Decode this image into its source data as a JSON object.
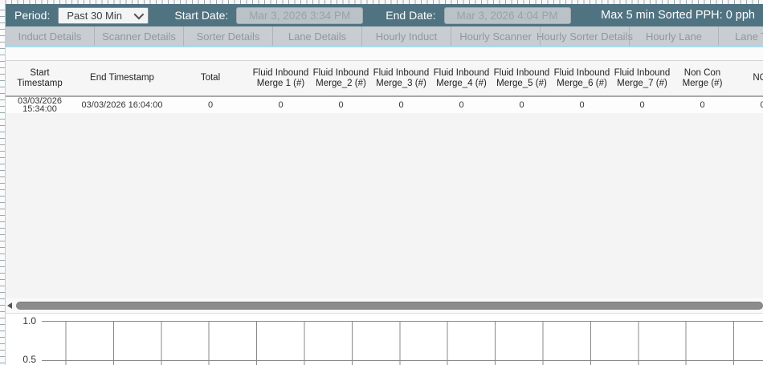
{
  "toolbar": {
    "period_label": "Period:",
    "period_value": "Past 30 Min",
    "start_date_label": "Start Date:",
    "start_date_value": "Mar 3, 2026 3:34 PM",
    "end_date_label": "End Date:",
    "end_date_value": "Mar 3, 2026 4:04 PM",
    "max_pph_text": "Max 5 min Sorted PPH: 0 pph"
  },
  "tabs": [
    "Induct Details",
    "Scanner Details",
    "Sorter Details",
    "Lane Details",
    "Hourly Induct",
    "Hourly Scanner",
    "Hourly Sorter Details",
    "Hourly Lane",
    "Lane To"
  ],
  "table": {
    "columns": [
      "Start Timestamp",
      "End Timestamp",
      "Total",
      "Fluid Inbound Merge 1 (#)",
      "Fluid Inbound Merge_2 (#)",
      "Fluid Inbound Merge_3 (#)",
      "Fluid Inbound Merge_4 (#)",
      "Fluid Inbound Merge_5 (#)",
      "Fluid Inbound Merge_6 (#)",
      "Fluid Inbound Merge_7 (#)",
      "Non Con Merge (#)",
      "NCP"
    ],
    "rows": [
      [
        "03/03/2026 15:34:00",
        "03/03/2026 16:04:00",
        "0",
        "0",
        "0",
        "0",
        "0",
        "0",
        "0",
        "0",
        "0",
        "0"
      ]
    ]
  },
  "chart_data": {
    "type": "line",
    "title": "",
    "xlabel": "",
    "ylabel": "",
    "x_tick_labels": [],
    "y_tick_labels": [
      "1.0",
      "0.5"
    ],
    "series": [],
    "grid": true,
    "note": "Empty plot area with square gridlines; no data series rendered; chart is clipped at the bottom edge of the screenshot"
  },
  "icons": {
    "period_chevron": "chevron-down",
    "scroll_left": "triangle-left"
  },
  "colors": {
    "toolbar_bg": "#507382",
    "tab_bg": "#c8cdd1",
    "tab_text": "#8f989f",
    "accent_blue_line": "#a9d9ec",
    "date_input_bg": "#b9c2c7",
    "scroll_thumb": "#8c8c8c",
    "grid_line": "#888888"
  }
}
